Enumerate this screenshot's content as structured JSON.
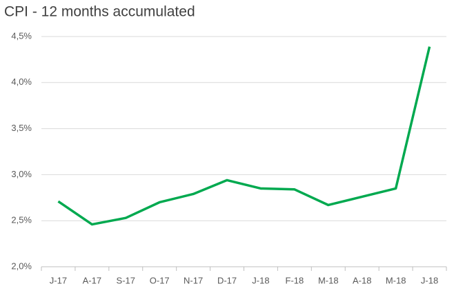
{
  "chart_data": {
    "type": "line",
    "title": "CPI - 12 months accumulated",
    "categories": [
      "J-17",
      "A-17",
      "S-17",
      "O-17",
      "N-17",
      "D-17",
      "J-18",
      "F-18",
      "M-18",
      "A-18",
      "M-18",
      "J-18"
    ],
    "series": [
      {
        "color": "#00a94f",
        "values": [
          2.71,
          2.46,
          2.53,
          2.7,
          2.79,
          2.94,
          2.85,
          2.84,
          2.67,
          2.76,
          2.85,
          4.39
        ]
      }
    ],
    "ylim": [
      2.0,
      4.5
    ],
    "yticks": [
      {
        "value": 2.0,
        "label": "2,0%"
      },
      {
        "value": 2.5,
        "label": "2,5%"
      },
      {
        "value": 3.0,
        "label": "3,0%"
      },
      {
        "value": 3.5,
        "label": "3,5%"
      },
      {
        "value": 4.0,
        "label": "4,0%"
      },
      {
        "value": 4.5,
        "label": "4,5%"
      }
    ],
    "grid": true
  }
}
